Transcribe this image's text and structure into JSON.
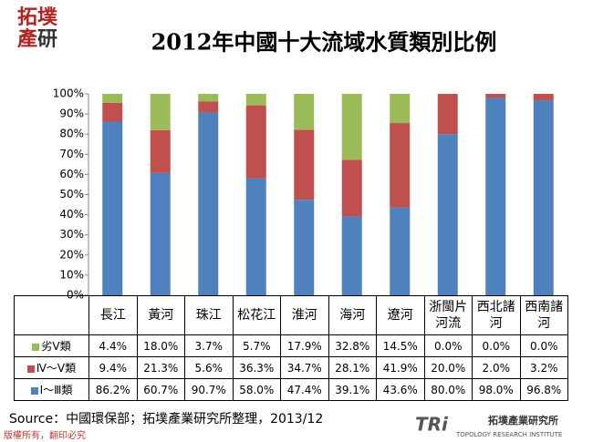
{
  "chart_data": {
    "type": "stacked_bar",
    "title": "2012年中國十大流域水質類別比例",
    "categories": [
      "長江",
      "黃河",
      "珠江",
      "松花江",
      "淮河",
      "海河",
      "遼河",
      "浙閩片河流",
      "西北諸河",
      "西南諸河"
    ],
    "series": [
      {
        "name": "劣Ⅴ類",
        "color": "#9bbb59",
        "values": [
          4.4,
          18.0,
          3.7,
          5.7,
          17.9,
          32.8,
          14.5,
          0.0,
          0.0,
          0.0
        ],
        "value_labels": [
          "4.4%",
          "18.0%",
          "3.7%",
          "5.7%",
          "17.9%",
          "32.8%",
          "14.5%",
          "0.0%",
          "0.0%",
          "0.0%"
        ]
      },
      {
        "name": "Ⅳ～Ⅴ類",
        "color": "#c0504d",
        "values": [
          9.4,
          21.3,
          5.6,
          36.3,
          34.7,
          28.1,
          41.9,
          20.0,
          2.0,
          3.2
        ],
        "value_labels": [
          "9.4%",
          "21.3%",
          "5.6%",
          "36.3%",
          "34.7%",
          "28.1%",
          "41.9%",
          "20.0%",
          "2.0%",
          "3.2%"
        ]
      },
      {
        "name": "Ⅰ～Ⅲ類",
        "color": "#4f81bd",
        "values": [
          86.2,
          60.7,
          90.7,
          58.0,
          47.4,
          39.1,
          43.6,
          80.0,
          98.0,
          96.8
        ],
        "value_labels": [
          "86.2%",
          "60.7%",
          "90.7%",
          "58.0%",
          "47.4%",
          "39.1%",
          "43.6%",
          "80.0%",
          "98.0%",
          "96.8%"
        ]
      }
    ],
    "ylim": [
      0,
      100
    ],
    "yticks": [
      {
        "value": 0,
        "label": "0%"
      },
      {
        "value": 10,
        "label": "10%"
      },
      {
        "value": 20,
        "label": "20%"
      },
      {
        "value": 30,
        "label": "30%"
      },
      {
        "value": 40,
        "label": "40%"
      },
      {
        "value": 50,
        "label": "50%"
      },
      {
        "value": 60,
        "label": "60%"
      },
      {
        "value": 70,
        "label": "70%"
      },
      {
        "value": 80,
        "label": "80%"
      },
      {
        "value": 90,
        "label": "90%"
      },
      {
        "value": 100,
        "label": "100%"
      }
    ],
    "grid": false,
    "source": "Source：中國環保部；拓墣產業研究所整理，2013/12",
    "footer": "版權所有，翻印必究",
    "logo_top": [
      "拓",
      "墣",
      "產",
      "研"
    ],
    "logo_bottom": {
      "mark": "TRi",
      "name": "拓墣產業研究所",
      "english": "TOPOLOGY RESEARCH INSTITUTE"
    }
  }
}
